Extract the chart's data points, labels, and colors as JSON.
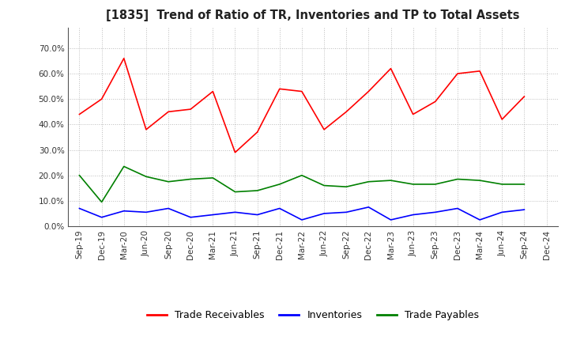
{
  "title": "[1835]  Trend of Ratio of TR, Inventories and TP to Total Assets",
  "x_labels": [
    "Sep-19",
    "Dec-19",
    "Mar-20",
    "Jun-20",
    "Sep-20",
    "Dec-20",
    "Mar-21",
    "Jun-21",
    "Sep-21",
    "Dec-21",
    "Mar-22",
    "Jun-22",
    "Sep-22",
    "Dec-22",
    "Mar-23",
    "Jun-23",
    "Sep-23",
    "Dec-23",
    "Mar-24",
    "Jun-24",
    "Sep-24",
    "Dec-24"
  ],
  "trade_receivables": [
    0.44,
    0.5,
    0.66,
    0.38,
    0.45,
    0.46,
    0.53,
    0.29,
    0.37,
    0.54,
    0.53,
    0.38,
    0.45,
    0.53,
    0.62,
    0.44,
    0.49,
    0.6,
    0.61,
    0.42,
    0.51,
    null
  ],
  "inventories": [
    0.07,
    0.035,
    0.06,
    0.055,
    0.07,
    0.035,
    0.045,
    0.055,
    0.045,
    0.07,
    0.025,
    0.05,
    0.055,
    0.075,
    0.025,
    0.045,
    0.055,
    0.07,
    0.025,
    0.055,
    0.065,
    null
  ],
  "trade_payables": [
    0.2,
    0.095,
    0.235,
    0.195,
    0.175,
    0.185,
    0.19,
    0.135,
    0.14,
    0.165,
    0.2,
    0.16,
    0.155,
    0.175,
    0.18,
    0.165,
    0.165,
    0.185,
    0.18,
    0.165,
    0.165,
    null
  ],
  "tr_color": "#FF0000",
  "inv_color": "#0000FF",
  "tp_color": "#008000",
  "ylim": [
    0.0,
    0.78
  ],
  "yticks": [
    0.0,
    0.1,
    0.2,
    0.3,
    0.4,
    0.5,
    0.6,
    0.7
  ],
  "background_color": "#FFFFFF",
  "grid_color": "#AAAAAA"
}
